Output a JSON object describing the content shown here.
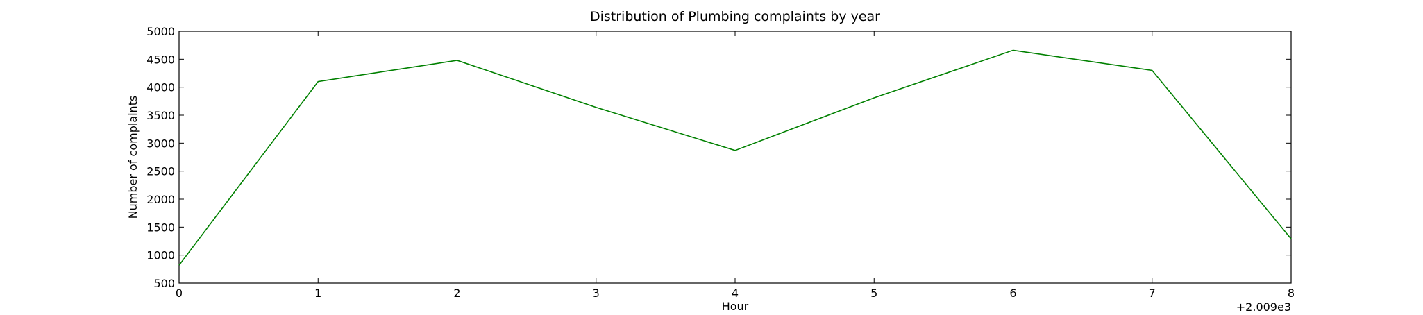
{
  "chart_data": {
    "type": "line",
    "title": "Distribution of  Plumbing complaints by year",
    "xlabel": "Hour",
    "ylabel": "Number of complaints",
    "x_offset_label": "+2.009e3",
    "x": [
      0,
      1,
      2,
      3,
      4,
      5,
      6,
      7,
      8
    ],
    "xlim": [
      0,
      8
    ],
    "ylim": [
      500,
      5000
    ],
    "x_ticks": [
      0,
      1,
      2,
      3,
      4,
      5,
      6,
      7,
      8
    ],
    "x_tick_labels": [
      "0",
      "1",
      "2",
      "3",
      "4",
      "5",
      "6",
      "7",
      "8"
    ],
    "y_ticks": [
      500,
      1000,
      1500,
      2000,
      2500,
      3000,
      3500,
      4000,
      4500,
      5000
    ],
    "y_tick_labels": [
      "500",
      "1000",
      "1500",
      "2000",
      "2500",
      "3000",
      "3500",
      "4000",
      "4500",
      "5000"
    ],
    "grid": false,
    "series": [
      {
        "values": [
          820,
          4100,
          4480,
          3640,
          2870,
          3810,
          4660,
          4300,
          1290
        ],
        "color": "#008000"
      }
    ]
  }
}
